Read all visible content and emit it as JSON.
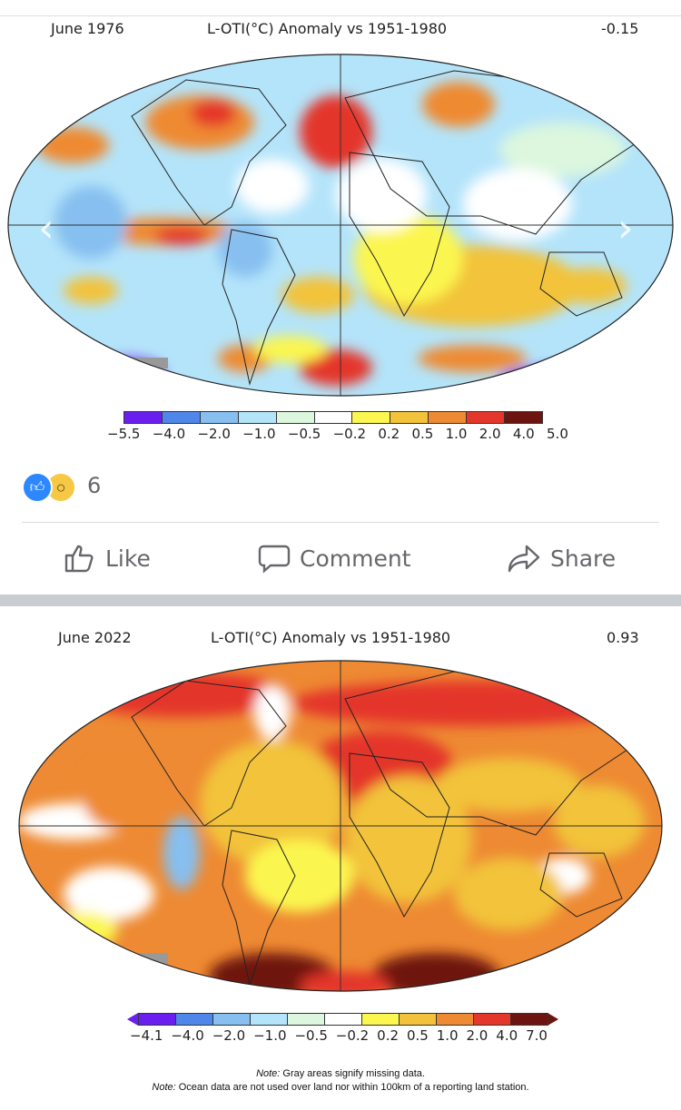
{
  "post1": {
    "map": {
      "date": "June 1976",
      "title": "L-OTI(°C) Anomaly vs 1951-1980",
      "mean": "-0.15",
      "colorbar": {
        "labels": [
          "−5.5",
          "−4.0",
          "−2.0",
          "−1.0",
          "−0.5",
          "−0.2",
          "0.2",
          "0.5",
          "1.0",
          "2.0",
          "4.0",
          "5.0"
        ],
        "colors": [
          "#6a1ff0",
          "#4f86ea",
          "#86bff0",
          "#b4e4fa",
          "#dcf7de",
          "#ffffff",
          "#fbf650",
          "#f2c33a",
          "#ee8a33",
          "#e4362a",
          "#6e1410"
        ]
      }
    },
    "nav": {
      "prev_icon": "chevron-left-icon",
      "next_icon": "chevron-right-icon"
    },
    "reactions": {
      "count": "6",
      "icons": [
        "like-icon",
        "wow-icon"
      ]
    },
    "actions": {
      "like": "Like",
      "comment": "Comment",
      "share": "Share"
    }
  },
  "post2": {
    "map": {
      "date": "June 2022",
      "title": "L-OTI(°C) Anomaly vs 1951-1980",
      "mean": "0.93",
      "colorbar": {
        "labels": [
          "−4.1",
          "−4.0",
          "−2.0",
          "−1.0",
          "−0.5",
          "−0.2",
          "0.2",
          "0.5",
          "1.0",
          "2.0",
          "4.0",
          "7.0"
        ],
        "colors": [
          "#6a1ff0",
          "#4f86ea",
          "#86bff0",
          "#b4e4fa",
          "#dcf7de",
          "#ffffff",
          "#fbf650",
          "#f2c33a",
          "#ee8a33",
          "#e4362a",
          "#6e1410"
        ]
      },
      "notes": [
        {
          "label": "Note:",
          "text": " Gray areas signify missing data."
        },
        {
          "label": "Note:",
          "text": " Ocean data are not used over land nor within 100km of a reporting land station."
        }
      ]
    }
  }
}
